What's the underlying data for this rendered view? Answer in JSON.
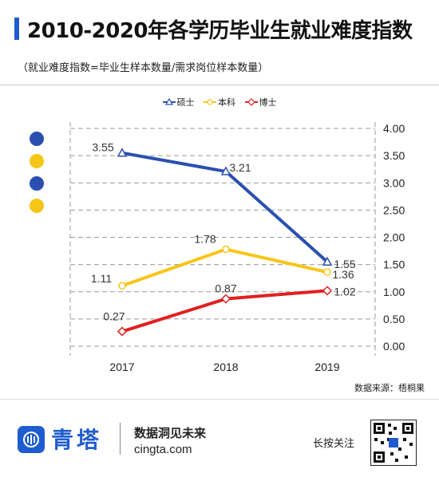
{
  "title": "2010-2020年各学历毕业生就业难度指数",
  "subtitle": "（就业难度指数=毕业生样本数量/需求岗位样本数量）",
  "source": "数据来源：梧桐果",
  "footer": {
    "brand": "青塔",
    "slogan": "数据洞见未来",
    "site": "cingta.com",
    "follow": "长按关注"
  },
  "colors": {
    "accent": "#1f5ccf",
    "blue": "#2b4fb0",
    "yellow": "#f5c518",
    "red": "#e02020"
  },
  "chart_data": {
    "type": "line",
    "categories": [
      "2017",
      "2018",
      "2019"
    ],
    "series": [
      {
        "name": "硕士",
        "color": "#2b4fb0",
        "values": [
          3.55,
          3.21,
          1.55
        ]
      },
      {
        "name": "本科",
        "color": "#f5c518",
        "values": [
          1.11,
          1.78,
          1.36
        ]
      },
      {
        "name": "博士",
        "color": "#e02020",
        "values": [
          0.27,
          0.87,
          1.02
        ]
      }
    ],
    "yticks": [
      "4.00",
      "3.50",
      "3.00",
      "2.50",
      "2.00",
      "1.50",
      "1.00",
      "0.50",
      "0.00"
    ],
    "ylim": [
      0,
      4
    ],
    "grid": true,
    "legend_position": "top"
  }
}
